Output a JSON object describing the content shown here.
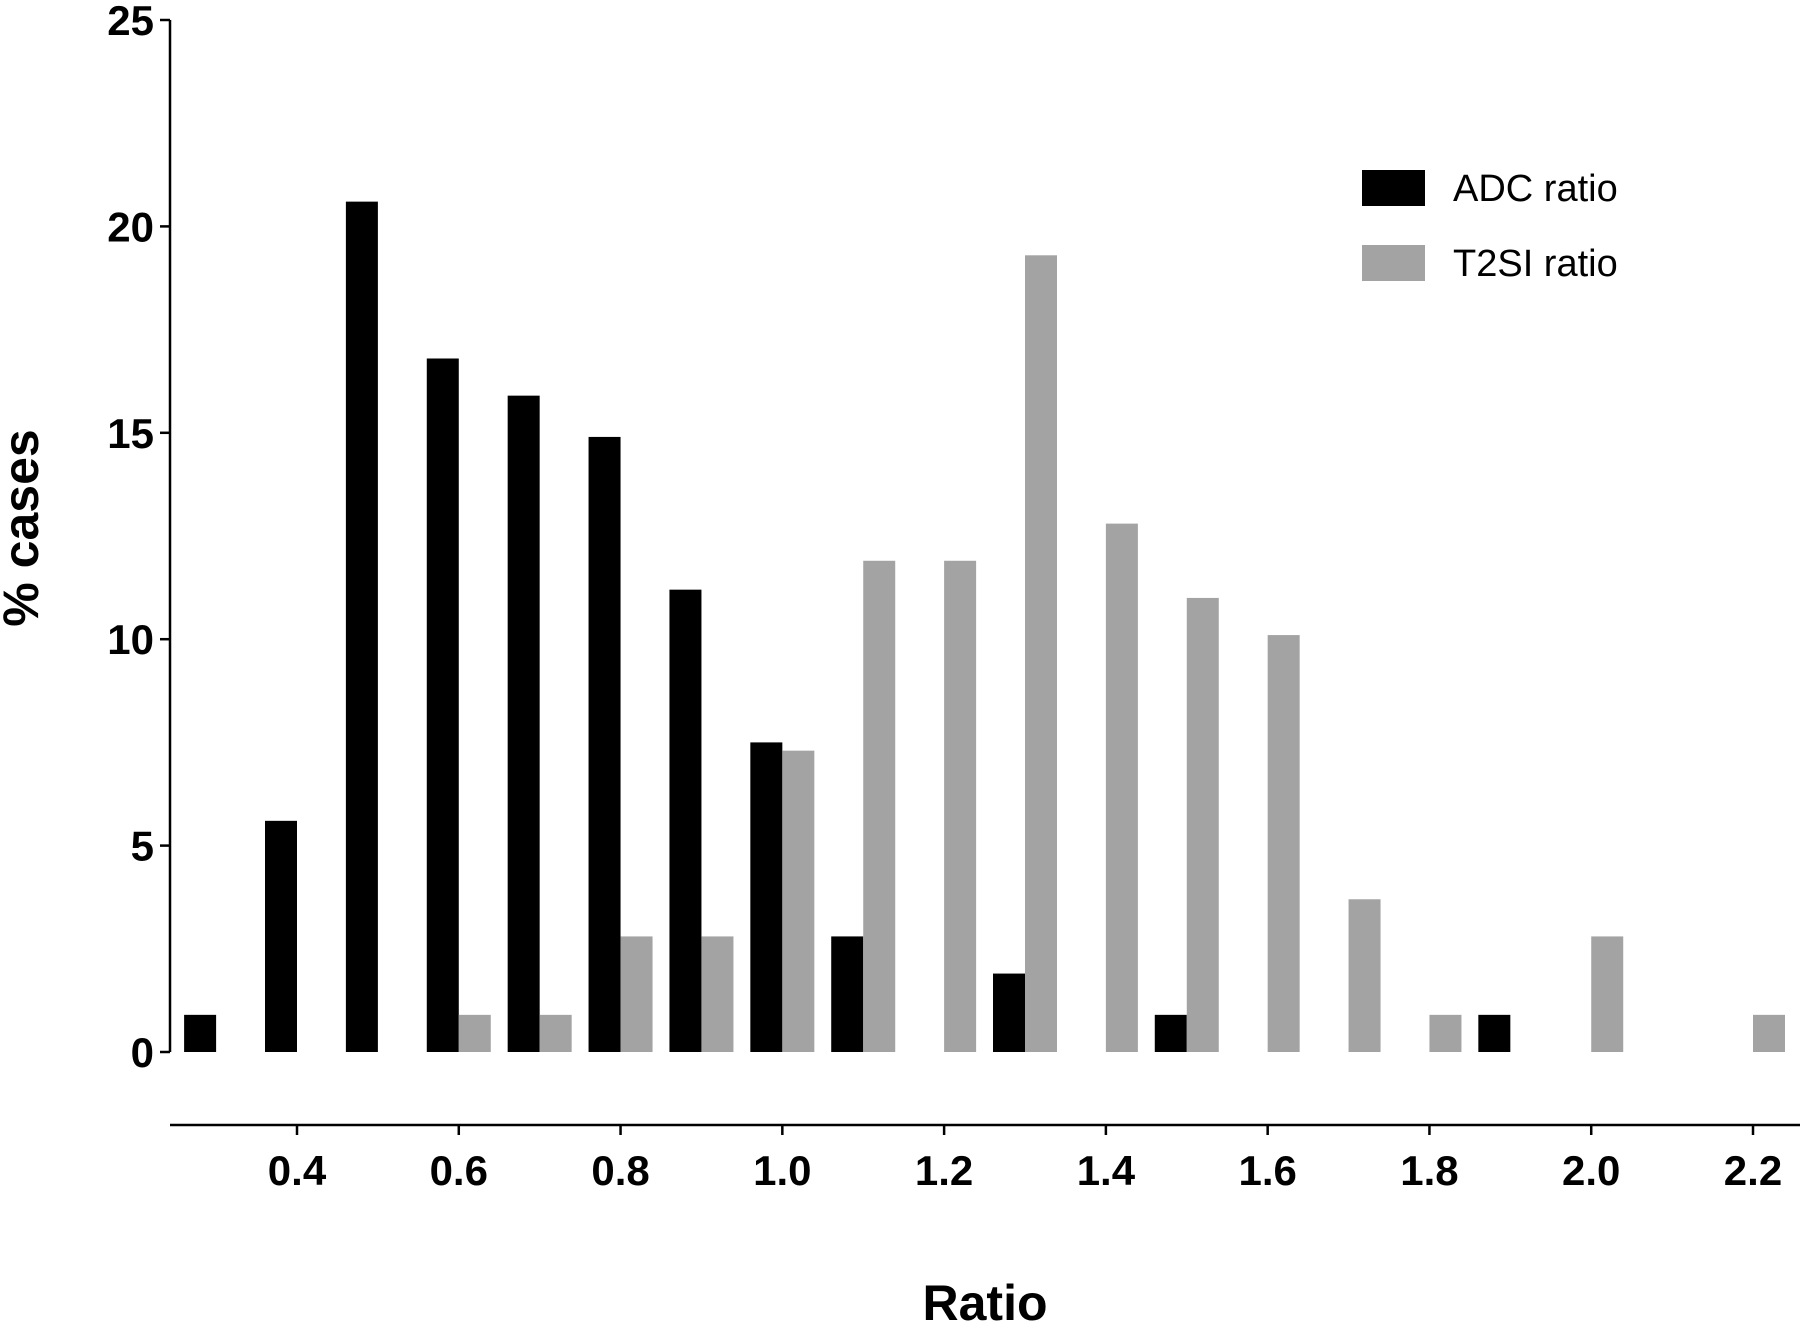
{
  "chart_data": {
    "type": "bar",
    "xlabel": "Ratio",
    "ylabel": "% cases",
    "ylim": [
      0,
      25
    ],
    "y_ticks": [
      "0",
      "5",
      "10",
      "15",
      "20",
      "25"
    ],
    "x_tick_labels": [
      "0.4",
      "0.6",
      "0.8",
      "1.0",
      "1.2",
      "1.4",
      "1.6",
      "1.8",
      "2.0",
      "2.2"
    ],
    "x_ticks": [
      0.4,
      0.6,
      0.8,
      1.0,
      1.2,
      1.4,
      1.6,
      1.8,
      2.0,
      2.2
    ],
    "xlim": [
      0.25,
      2.25
    ],
    "bin_starts": [
      0.3,
      0.4,
      0.5,
      0.6,
      0.7,
      0.8,
      0.9,
      1.0,
      1.1,
      1.2,
      1.3,
      1.4,
      1.5,
      1.6,
      1.7,
      1.8,
      1.9,
      2.0,
      2.1,
      2.2
    ],
    "legend_position": "top-right",
    "series": [
      {
        "name": "ADC ratio",
        "color": "#000000",
        "values": [
          0.9,
          5.6,
          20.6,
          16.8,
          15.9,
          14.9,
          11.2,
          7.5,
          2.8,
          0,
          1.9,
          0,
          0.9,
          0,
          0,
          0,
          0.9,
          0,
          0,
          0
        ]
      },
      {
        "name": "T2SI ratio",
        "color": "#a3a3a3",
        "values": [
          0,
          0,
          0,
          0.9,
          0.9,
          2.8,
          2.8,
          7.3,
          11.9,
          11.9,
          19.3,
          12.8,
          11.0,
          10.1,
          3.7,
          0.9,
          0,
          2.8,
          0,
          0.9
        ]
      }
    ]
  }
}
